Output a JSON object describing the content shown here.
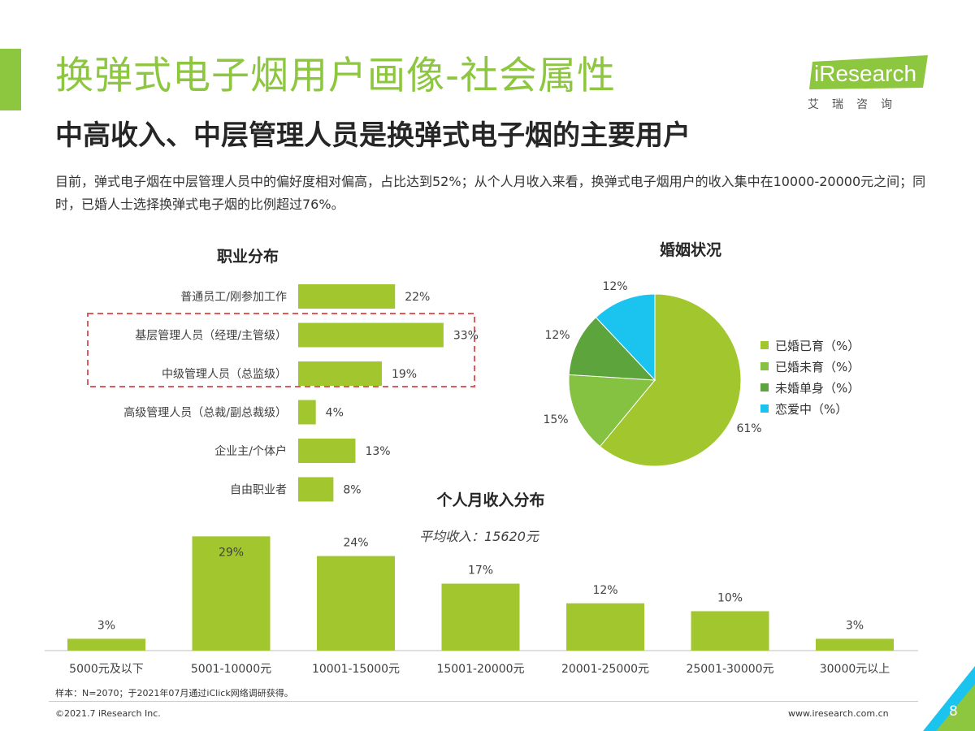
{
  "header": {
    "title": "换弹式电子烟用户画像-社会属性",
    "subtitle": "中高收入、中层管理人员是换弹式电子烟的主要用户",
    "description": "目前，弹式电子烟在中层管理人员中的偏好度相对偏高，占比达到52%；从个人月收入来看，换弹式电子烟用户的收入集中在10000-20000元之间；同时，已婚人士选择换弹式电子烟的比例超过76%。"
  },
  "logo": {
    "wordmark": "iResearch",
    "cn": "艾瑞咨询"
  },
  "colors": {
    "accent": "#8dc63f",
    "bar": "#a2c72e",
    "pie": [
      "#a2c72e",
      "#85c241",
      "#5ea43c",
      "#1bc4ef"
    ],
    "highlight_box": "#e05a5a"
  },
  "chart_data": [
    {
      "type": "bar",
      "orientation": "horizontal",
      "title": "职业分布",
      "categories": [
        "普通员工/刚参加工作",
        "基层管理人员（经理/主管级）",
        "中级管理人员（总监级）",
        "高级管理人员（总裁/副总裁级）",
        "企业主/个体户",
        "自由职业者"
      ],
      "values": [
        22,
        33,
        19,
        4,
        13,
        8
      ],
      "value_labels": [
        "22%",
        "33%",
        "19%",
        "4%",
        "13%",
        "8%"
      ],
      "unit": "%",
      "highlighted_categories": [
        "基层管理人员（经理/主管级）",
        "中级管理人员（总监级）"
      ]
    },
    {
      "type": "pie",
      "title": "婚姻状况",
      "categories": [
        "已婚已育（%）",
        "已婚未育（%）",
        "未婚单身（%）",
        "恋爱中（%）"
      ],
      "values": [
        61,
        15,
        12,
        12
      ],
      "value_labels": [
        "61%",
        "15%",
        "12%",
        "12%"
      ],
      "legend_position": "right"
    },
    {
      "type": "bar",
      "orientation": "vertical",
      "title": "个人月收入分布",
      "annotation": "平均收入：15620元",
      "categories": [
        "5000元及以下",
        "5001-10000元",
        "10001-15000元",
        "15001-20000元",
        "20001-25000元",
        "25001-30000元",
        "30000元以上"
      ],
      "values": [
        3,
        29,
        24,
        17,
        12,
        10,
        3
      ],
      "value_labels": [
        "3%",
        "29%",
        "24%",
        "17%",
        "12%",
        "10%",
        "3%"
      ],
      "unit": "%"
    }
  ],
  "footer": {
    "note": "样本：N=2070；于2021年07月通过iClick网络调研获得。",
    "copyright": "©2021.7 iResearch Inc.",
    "website": "www.iresearch.com.cn",
    "page": "8"
  }
}
